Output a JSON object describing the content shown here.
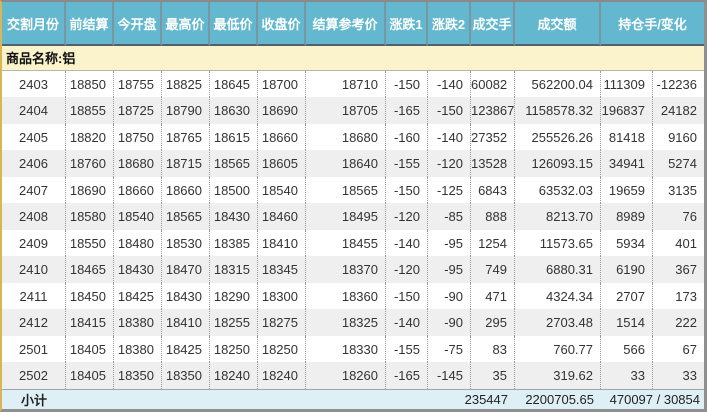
{
  "table": {
    "headers": [
      "交割月份",
      "前结算",
      "今开盘",
      "最高价",
      "最低价",
      "收盘价",
      "结算参考价",
      "涨跌1",
      "涨跌2",
      "成交手",
      "成交额",
      "持仓手/变化"
    ],
    "product_label": "商品名称:铝",
    "rows": [
      [
        "2403",
        "18850",
        "18755",
        "18825",
        "18645",
        "18700",
        "18710",
        "-150",
        "-140",
        "60082",
        "562200.04",
        "111309",
        "-12236"
      ],
      [
        "2404",
        "18855",
        "18725",
        "18790",
        "18630",
        "18690",
        "18705",
        "-165",
        "-150",
        "123867",
        "1158578.32",
        "196837",
        "24182"
      ],
      [
        "2405",
        "18820",
        "18750",
        "18765",
        "18615",
        "18660",
        "18680",
        "-160",
        "-140",
        "27352",
        "255526.26",
        "81418",
        "9160"
      ],
      [
        "2406",
        "18760",
        "18680",
        "18715",
        "18565",
        "18605",
        "18640",
        "-155",
        "-120",
        "13528",
        "126093.15",
        "34941",
        "5274"
      ],
      [
        "2407",
        "18690",
        "18660",
        "18660",
        "18500",
        "18540",
        "18565",
        "-150",
        "-125",
        "6843",
        "63532.03",
        "19659",
        "3135"
      ],
      [
        "2408",
        "18580",
        "18540",
        "18565",
        "18430",
        "18460",
        "18495",
        "-120",
        "-85",
        "888",
        "8213.70",
        "8989",
        "76"
      ],
      [
        "2409",
        "18550",
        "18480",
        "18530",
        "18385",
        "18410",
        "18455",
        "-140",
        "-95",
        "1254",
        "11573.65",
        "5934",
        "401"
      ],
      [
        "2410",
        "18465",
        "18430",
        "18470",
        "18315",
        "18345",
        "18370",
        "-120",
        "-95",
        "749",
        "6880.31",
        "6190",
        "367"
      ],
      [
        "2411",
        "18450",
        "18425",
        "18430",
        "18290",
        "18300",
        "18360",
        "-150",
        "-90",
        "471",
        "4324.34",
        "2707",
        "173"
      ],
      [
        "2412",
        "18415",
        "18380",
        "18410",
        "18255",
        "18275",
        "18325",
        "-140",
        "-90",
        "295",
        "2703.48",
        "1514",
        "222"
      ],
      [
        "2501",
        "18405",
        "18380",
        "18425",
        "18250",
        "18250",
        "18330",
        "-155",
        "-75",
        "83",
        "760.77",
        "566",
        "67"
      ],
      [
        "2502",
        "18405",
        "18350",
        "18350",
        "18240",
        "18240",
        "18260",
        "-165",
        "-145",
        "35",
        "319.62",
        "33",
        "33"
      ]
    ],
    "subtotal": {
      "label": "小计",
      "volume_total": "235447",
      "turnover_total": "2200705.65",
      "open_interest_total": "470097 / 30854"
    }
  },
  "colors": {
    "header_bg": "#63b8cf",
    "header_text": "#ffffff",
    "header_separator": "#7d95a0",
    "product_row_bg": "#fbf3cc",
    "row_stripe_bg": "#efefef",
    "subtotal_row_bg": "#dfeff6",
    "outer_border_gold": "#d9b654",
    "outer_border_gray": "#8f8f8f"
  }
}
